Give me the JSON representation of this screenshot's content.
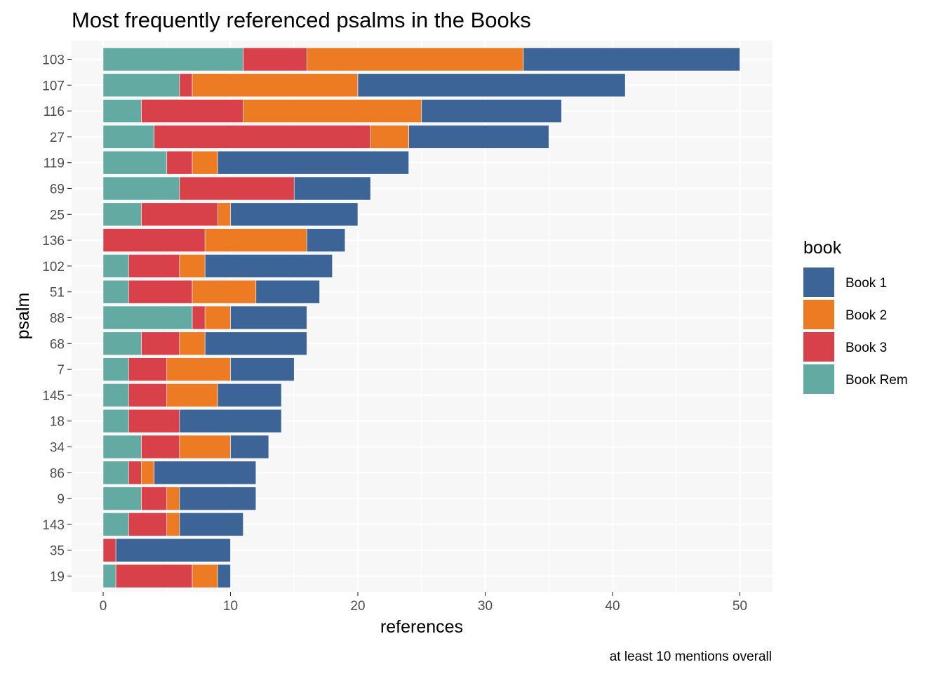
{
  "chart_data": {
    "type": "bar",
    "orientation": "horizontal",
    "stacked": true,
    "title": "Most frequently referenced psalms in the Books",
    "caption": "at least 10 mentions overall",
    "xlabel": "references",
    "ylabel": "psalm",
    "xlim": [
      0,
      52.5
    ],
    "x_ticks": [
      0,
      10,
      20,
      30,
      40,
      50
    ],
    "grid": true,
    "legend": {
      "title": "book",
      "position": "right",
      "entries": [
        "Book 1",
        "Book 2",
        "Book 3",
        "Book Rem"
      ]
    },
    "categories": [
      "103",
      "107",
      "116",
      "27",
      "119",
      "69",
      "25",
      "136",
      "102",
      "51",
      "88",
      "68",
      "7",
      "145",
      "18",
      "34",
      "86",
      "9",
      "143",
      "35",
      "19"
    ],
    "stack_order": [
      "Book Rem",
      "Book 3",
      "Book 2",
      "Book 1"
    ],
    "series": [
      {
        "name": "Book 1",
        "color": "#3d6496",
        "values": [
          17,
          21,
          11,
          11,
          15,
          6,
          10,
          3,
          10,
          5,
          6,
          8,
          5,
          5,
          8,
          3,
          8,
          6,
          5,
          9,
          1
        ]
      },
      {
        "name": "Book 2",
        "color": "#ed7b24",
        "values": [
          17,
          13,
          14,
          3,
          2,
          0,
          1,
          8,
          2,
          5,
          2,
          2,
          5,
          4,
          0,
          4,
          1,
          1,
          1,
          0,
          2
        ]
      },
      {
        "name": "Book 3",
        "color": "#d8404a",
        "values": [
          5,
          1,
          8,
          17,
          2,
          9,
          6,
          8,
          4,
          5,
          1,
          3,
          3,
          3,
          4,
          3,
          1,
          2,
          3,
          1,
          6
        ]
      },
      {
        "name": "Book Rem",
        "color": "#63aaa3",
        "values": [
          11,
          6,
          3,
          4,
          5,
          6,
          3,
          0,
          2,
          2,
          7,
          3,
          2,
          2,
          2,
          3,
          2,
          3,
          2,
          0,
          1
        ]
      }
    ]
  }
}
